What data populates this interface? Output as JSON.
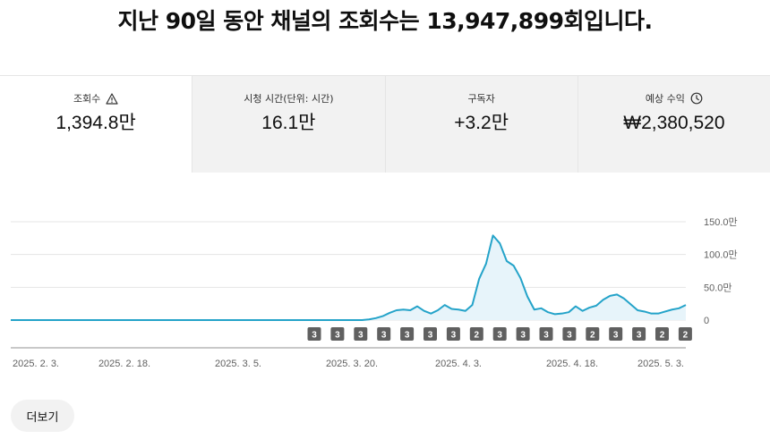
{
  "headline": "지난 90일 동안 채널의 조회수는 13,947,899회입니다.",
  "tabs": [
    {
      "label": "조회수",
      "value": "1,394.8만",
      "icon": "warning-icon"
    },
    {
      "label": "시청 시간(단위: 시간)",
      "value": "16.1만"
    },
    {
      "label": "구독자",
      "value": "+3.2만"
    },
    {
      "label": "예상 수익",
      "value": "₩2,380,520",
      "icon": "clock-icon"
    }
  ],
  "colors": {
    "line": "#24a3c9",
    "area": "#e7f4fa",
    "badge": "#606060",
    "grid": "#e5e5e5"
  },
  "chart_data": {
    "type": "area",
    "y_ticks": [
      "150.0만",
      "100.0만",
      "50.0만",
      "0"
    ],
    "ylim": [
      0,
      1500000
    ],
    "x_labels": [
      "2025. 2. 3.",
      "2025. 2. 18.",
      "2025. 3. 5.",
      "2025. 3. 20.",
      "2025. 4. 3.",
      "2025. 4. 18.",
      "2025. 5. 3."
    ],
    "values": [
      0,
      0,
      0,
      0,
      0,
      0,
      0,
      0,
      0,
      0,
      0,
      0,
      0,
      0,
      0,
      0,
      0,
      0,
      0,
      0,
      0,
      0,
      0,
      0,
      0,
      0,
      0,
      0,
      0,
      0,
      0,
      0,
      0,
      0,
      0,
      0,
      0,
      0,
      0,
      0,
      0,
      0,
      0,
      0,
      0,
      0,
      0,
      0,
      0,
      0,
      0,
      0,
      10000,
      30000,
      60000,
      110000,
      150000,
      160000,
      150000,
      210000,
      140000,
      100000,
      150000,
      230000,
      170000,
      160000,
      140000,
      230000,
      630000,
      860000,
      1290000,
      1170000,
      900000,
      830000,
      640000,
      360000,
      160000,
      180000,
      120000,
      90000,
      100000,
      120000,
      210000,
      140000,
      190000,
      220000,
      310000,
      370000,
      390000,
      330000,
      240000,
      150000,
      130000,
      100000,
      100000,
      130000,
      160000,
      180000,
      230000
    ],
    "badges": [
      "3",
      "3",
      "3",
      "3",
      "3",
      "3",
      "3",
      "2",
      "3",
      "3",
      "3",
      "3",
      "2",
      "3",
      "3",
      "2",
      "2"
    ]
  },
  "more_button": "더보기"
}
